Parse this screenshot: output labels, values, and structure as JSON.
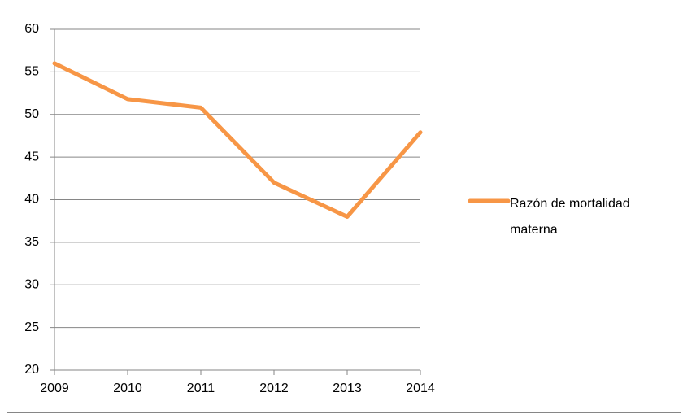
{
  "chart_data": {
    "type": "line",
    "categories": [
      "2009",
      "2010",
      "2011",
      "2012",
      "2013",
      "2014"
    ],
    "series": [
      {
        "name": "Razón de mortalidad materna",
        "color": "#f79646",
        "values": [
          56,
          51.8,
          50.8,
          42,
          38,
          47.9
        ]
      }
    ],
    "ylim": [
      20,
      60
    ],
    "yticks": [
      20,
      25,
      30,
      35,
      40,
      45,
      50,
      55,
      60
    ],
    "grid": true,
    "legend": "right"
  }
}
